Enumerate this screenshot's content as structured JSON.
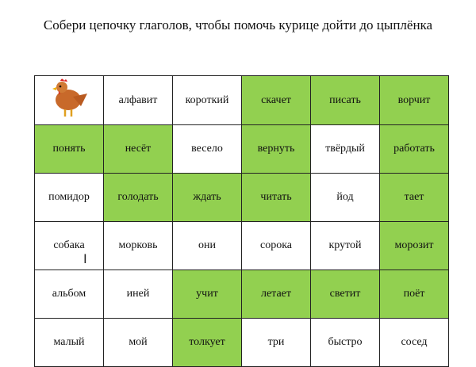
{
  "title": "Собери цепочку глаголов, чтобы помочь курице дойти до цыплёнка",
  "colors": {
    "highlight": "#92d050",
    "border": "#222222"
  },
  "grid": [
    [
      {
        "text": "",
        "image": "hen",
        "green": false
      },
      {
        "text": "алфавит",
        "green": false
      },
      {
        "text": "короткий",
        "green": false
      },
      {
        "text": "скачет",
        "green": true
      },
      {
        "text": "писать",
        "green": true
      },
      {
        "text": "ворчит",
        "green": true
      }
    ],
    [
      {
        "text": "понять",
        "green": true
      },
      {
        "text": "несёт",
        "green": true
      },
      {
        "text": "весело",
        "green": false
      },
      {
        "text": "вернуть",
        "green": true
      },
      {
        "text": "твёрдый",
        "green": false
      },
      {
        "text": "работать",
        "green": true
      }
    ],
    [
      {
        "text": "помидор",
        "green": false
      },
      {
        "text": "голодать",
        "green": true
      },
      {
        "text": "ждать",
        "green": true
      },
      {
        "text": "читать",
        "green": true
      },
      {
        "text": "йод",
        "green": false
      },
      {
        "text": "тает",
        "green": true
      }
    ],
    [
      {
        "text": "собака",
        "green": false
      },
      {
        "text": "морковь",
        "green": false
      },
      {
        "text": "они",
        "green": false
      },
      {
        "text": "сорока",
        "green": false
      },
      {
        "text": "крутой",
        "green": false
      },
      {
        "text": "морозит",
        "green": true
      }
    ],
    [
      {
        "text": "альбом",
        "green": false
      },
      {
        "text": "иней",
        "green": false
      },
      {
        "text": "учит",
        "green": true
      },
      {
        "text": "летает",
        "green": true
      },
      {
        "text": "светит",
        "green": true
      },
      {
        "text": "поёт",
        "green": true
      }
    ],
    [
      {
        "text": "малый",
        "green": false
      },
      {
        "text": "мой",
        "green": false
      },
      {
        "text": "толкует",
        "green": true
      },
      {
        "text": "три",
        "green": false
      },
      {
        "text": "быстро",
        "green": false
      },
      {
        "text": "сосед",
        "green": false
      }
    ]
  ]
}
